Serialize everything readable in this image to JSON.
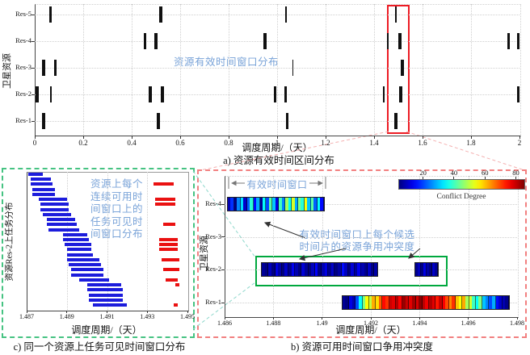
{
  "figure_title": "resource-time-window-figure",
  "colors": {
    "mark_black": "#101010",
    "annotation_blue": "#79a3d8",
    "task_bar_blue": "#1c1cdc",
    "task_bar_red": "#ea1111",
    "highlight_rect_red": "#ed1c24",
    "inset_border_green": "#46c382",
    "inset_border_red": "#f28080",
    "conflict_box_green": "#00a83e",
    "grid_gray": "#cfcfcf"
  },
  "chart_data": [
    {
      "id": "a",
      "type": "scatter",
      "title": "a) 资源有效时间区间分布",
      "xlabel": "调度周期/（天）",
      "ylabel": "卫星资源",
      "annotation": "资源有效时间窗口分布",
      "xlim": [
        0,
        2
      ],
      "xticks": [
        0,
        0.2,
        0.4,
        0.6,
        0.8,
        1,
        1.2,
        1.4,
        1.6,
        1.8,
        2
      ],
      "xtick_labels": [
        "0",
        "0.2",
        "0.4",
        "0.6",
        "0.8",
        "1",
        "1.2",
        "1.4",
        "1.6",
        "1.8",
        "2"
      ],
      "grid": true,
      "highlight_box": {
        "x0": 1.455,
        "x1": 1.535
      },
      "series": [
        {
          "name": "Res-5",
          "marks": [
            {
              "x": 0.065,
              "w": 3
            },
            {
              "x": 0.52,
              "w": 4
            },
            {
              "x": 1.035,
              "w": 2
            },
            {
              "x": 1.49,
              "w": 2
            }
          ]
        },
        {
          "name": "Res-4",
          "marks": [
            {
              "x": 0.455,
              "w": 3
            },
            {
              "x": 0.5,
              "w": 4
            },
            {
              "x": 0.95,
              "w": 4
            },
            {
              "x": 1.455,
              "w": 2
            },
            {
              "x": 1.505,
              "w": 4
            },
            {
              "x": 1.955,
              "w": 3
            },
            {
              "x": 1.995,
              "w": 3
            }
          ]
        },
        {
          "name": "Res-3",
          "marks": [
            {
              "x": 0.035,
              "w": 4
            },
            {
              "x": 0.085,
              "w": 3
            },
            {
              "x": 1.065,
              "w": 1.5
            },
            {
              "x": 1.515,
              "w": 4
            }
          ]
        },
        {
          "name": "Res-2",
          "marks": [
            {
              "x": 0.01,
              "w": 4
            },
            {
              "x": 0.065,
              "w": 2
            },
            {
              "x": 0.475,
              "w": 4
            },
            {
              "x": 0.525,
              "w": 4
            },
            {
              "x": 0.99,
              "w": 3
            },
            {
              "x": 1.035,
              "w": 3
            },
            {
              "x": 1.44,
              "w": 1.5
            },
            {
              "x": 1.51,
              "w": 4
            },
            {
              "x": 1.995,
              "w": 3
            }
          ]
        },
        {
          "name": "Res-1",
          "marks": [
            {
              "x": 0.035,
              "w": 4
            },
            {
              "x": 0.51,
              "w": 4
            },
            {
              "x": 1.04,
              "w": 3
            },
            {
              "x": 1.49,
              "w": 4
            }
          ]
        }
      ]
    },
    {
      "id": "c",
      "type": "bar",
      "title": "c) 同一个资源上任务可见时间窗口分布",
      "xlabel": "调度周期/（天）",
      "ylabel": "资源Res-2上任务分布",
      "annotation_lines": [
        "资源上每个",
        "连续可用时",
        "间窗口上的",
        "任务可见时",
        "间窗口分布"
      ],
      "xlim": [
        1.487,
        1.495
      ],
      "xticks": [
        1.487,
        1.489,
        1.491,
        1.493,
        1.495
      ],
      "xtick_labels": [
        "1.487",
        "1.489",
        "1.491",
        "1.493",
        "1.495"
      ],
      "grid": true,
      "blue_bars": [
        {
          "row": 0,
          "x0": 1.4871,
          "x1": 1.4878
        },
        {
          "row": 1,
          "x0": 1.4872,
          "x1": 1.4882
        },
        {
          "row": 2,
          "x0": 1.4872,
          "x1": 1.4883
        },
        {
          "row": 3,
          "x0": 1.4873,
          "x1": 1.4884
        },
        {
          "row": 4,
          "x0": 1.4873,
          "x1": 1.4884
        },
        {
          "row": 5,
          "x0": 1.4876,
          "x1": 1.489
        },
        {
          "row": 6,
          "x0": 1.4877,
          "x1": 1.4891
        },
        {
          "row": 7,
          "x0": 1.4877,
          "x1": 1.4891
        },
        {
          "row": 8,
          "x0": 1.4878,
          "x1": 1.4892
        },
        {
          "row": 9,
          "x0": 1.488,
          "x1": 1.4894
        },
        {
          "row": 10,
          "x0": 1.488,
          "x1": 1.4895
        },
        {
          "row": 11,
          "x0": 1.4881,
          "x1": 1.4896
        },
        {
          "row": 12,
          "x0": 1.4888,
          "x1": 1.49
        },
        {
          "row": 13,
          "x0": 1.4888,
          "x1": 1.4901
        },
        {
          "row": 14,
          "x0": 1.4889,
          "x1": 1.4902
        },
        {
          "row": 15,
          "x0": 1.489,
          "x1": 1.4902
        },
        {
          "row": 16,
          "x0": 1.489,
          "x1": 1.4903
        },
        {
          "row": 17,
          "x0": 1.489,
          "x1": 1.4906
        },
        {
          "row": 18,
          "x0": 1.4891,
          "x1": 1.4907
        },
        {
          "row": 19,
          "x0": 1.4892,
          "x1": 1.4908
        },
        {
          "row": 20,
          "x0": 1.4892,
          "x1": 1.4908
        },
        {
          "row": 21,
          "x0": 1.4896,
          "x1": 1.4911
        },
        {
          "row": 22,
          "x0": 1.49,
          "x1": 1.4917
        },
        {
          "row": 23,
          "x0": 1.49,
          "x1": 1.4918
        },
        {
          "row": 24,
          "x0": 1.4901,
          "x1": 1.4918
        },
        {
          "row": 25,
          "x0": 1.4901,
          "x1": 1.4918
        },
        {
          "row": 26,
          "x0": 1.4903,
          "x1": 1.492
        }
      ],
      "red_bars": [
        {
          "row": 2,
          "x0": 1.4933,
          "x1": 1.4943
        },
        {
          "row": 5,
          "x0": 1.4934,
          "x1": 1.4944
        },
        {
          "row": 6,
          "x0": 1.4934,
          "x1": 1.4944
        },
        {
          "row": 10,
          "x0": 1.4938,
          "x1": 1.4944
        },
        {
          "row": 13,
          "x0": 1.4936,
          "x1": 1.4945
        },
        {
          "row": 14,
          "x0": 1.4936,
          "x1": 1.4945
        },
        {
          "row": 15,
          "x0": 1.4936,
          "x1": 1.4945
        },
        {
          "row": 17,
          "x0": 1.4937,
          "x1": 1.4946
        },
        {
          "row": 19,
          "x0": 1.4938,
          "x1": 1.4946
        },
        {
          "row": 21,
          "x0": 1.4939,
          "x1": 1.4945
        },
        {
          "row": 22,
          "x0": 1.4944,
          "x1": 1.4946
        },
        {
          "row": 26,
          "x0": 1.4943,
          "x1": 1.4945
        }
      ]
    },
    {
      "id": "b",
      "type": "heatmap",
      "title": "b) 资源可用时间窗口争用冲突度",
      "xlabel": "调度周期/（天）",
      "ylabel": "卫星资源",
      "xlim": [
        1.486,
        1.498
      ],
      "xticks": [
        1.486,
        1.488,
        1.49,
        1.492,
        1.494,
        1.496,
        1.498
      ],
      "xtick_labels": [
        "1.486",
        "1.488",
        "1.49",
        "1.492",
        "1.494",
        "1.496",
        "1.498"
      ],
      "categories": [
        "Res-4",
        "Res-3",
        "Res-2",
        "Res-1"
      ],
      "grid": true,
      "colorbar": {
        "label": "Conflict Degree",
        "ticks": [
          20,
          40,
          60,
          80
        ],
        "vmin": 4,
        "vmax": 86
      },
      "annotations": {
        "window_label": "有效时间窗口",
        "conflict_line1": "有效时间窗口上每个候选",
        "conflict_line2": "时间片的资源争用冲突度"
      },
      "bars": [
        {
          "res": "Res-4",
          "x0": 1.4861,
          "x1": 1.4901,
          "values": [
            8,
            18,
            4,
            25,
            32,
            10,
            22,
            38,
            15,
            28,
            6,
            35,
            20,
            42,
            30,
            12,
            40,
            25,
            48,
            35,
            52,
            28,
            45,
            38,
            55,
            30,
            42,
            22,
            35,
            15
          ]
        },
        {
          "res": "Res-2",
          "x0": 1.4875,
          "x1": 1.4923,
          "values": [
            6,
            3,
            9,
            4,
            12,
            7,
            2,
            10,
            5,
            13,
            8,
            3,
            11,
            6,
            2,
            9,
            14,
            4,
            8,
            12,
            5,
            10,
            3,
            7,
            15,
            9,
            4,
            11,
            6,
            13,
            8,
            5,
            10,
            4,
            7
          ]
        },
        {
          "res": "Res-2",
          "x0": 1.4938,
          "x1": 1.4948,
          "values": [
            5,
            9,
            3,
            12,
            7,
            4,
            10,
            6
          ]
        },
        {
          "res": "Res-1",
          "x0": 1.4908,
          "x1": 1.4977,
          "values": [
            6,
            3,
            12,
            8,
            20,
            35,
            45,
            55,
            50,
            62,
            58,
            68,
            75,
            72,
            80,
            78,
            82,
            76,
            84,
            80,
            78,
            83,
            79,
            85,
            81,
            77,
            82,
            78,
            74,
            80,
            76,
            70,
            65,
            72,
            60,
            55,
            62,
            48,
            52,
            40,
            35,
            45,
            30,
            25,
            20,
            28,
            15,
            10,
            8,
            5
          ]
        }
      ]
    }
  ]
}
